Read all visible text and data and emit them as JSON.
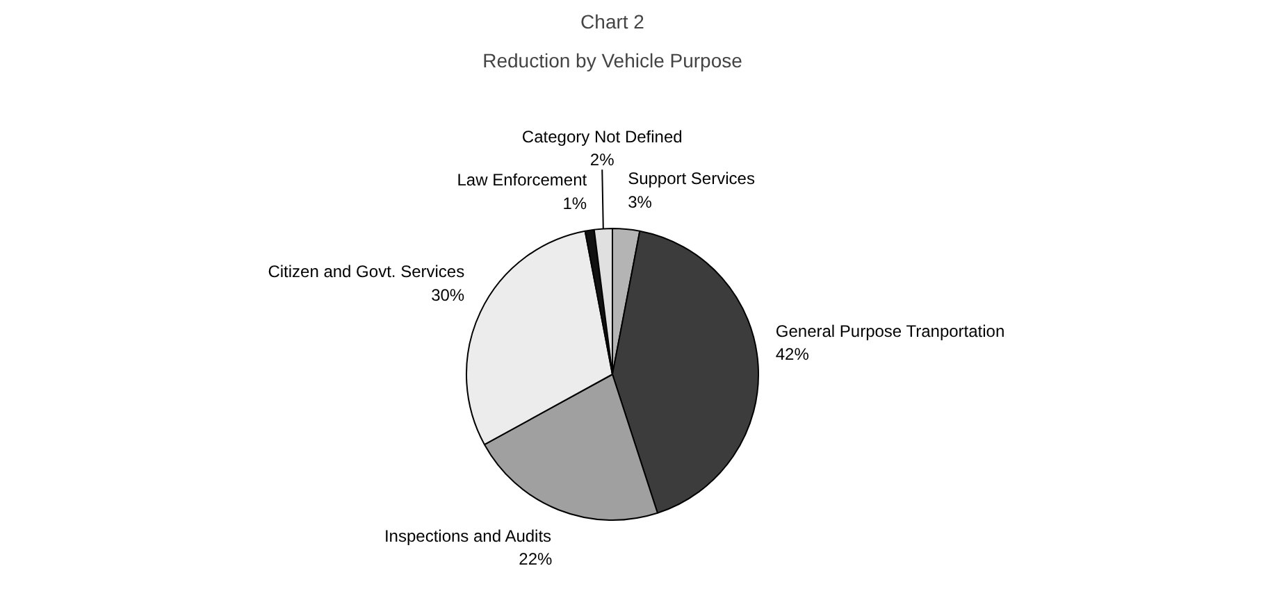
{
  "chart_data": {
    "type": "pie",
    "title": "Chart 2",
    "subtitle": "Reduction by Vehicle Purpose",
    "categories": [
      "Support Services",
      "General Purpose Tranportation",
      "Inspections and Audits",
      "Citizen and Govt. Services",
      "Law Enforcement",
      "Category Not Defined"
    ],
    "values": [
      3,
      42,
      22,
      30,
      1,
      2
    ],
    "colors": [
      "#b4b4b4",
      "#3c3c3c",
      "#a0a0a0",
      "#ececec",
      "#111111",
      "#e0e0e0"
    ],
    "value_labels": [
      "3%",
      "42%",
      "22%",
      "30%",
      "1%",
      "2%"
    ]
  }
}
